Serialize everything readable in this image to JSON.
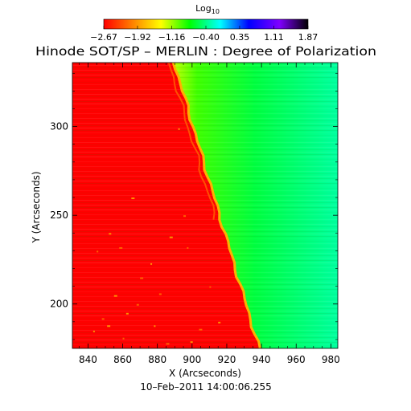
{
  "chart_data": {
    "type": "heatmap",
    "title": "Hinode SOT/SP – MERLIN : Degree of Polarization",
    "xlabel": "X (Arcseconds)",
    "ylabel": "Y (Arcseconds)",
    "xlim": [
      831,
      984
    ],
    "ylim": [
      175,
      336
    ],
    "xticks": [
      840,
      860,
      880,
      900,
      920,
      940,
      960,
      980
    ],
    "yticks": [
      200,
      250,
      300
    ],
    "timestamp": "10–Feb–2011 14:00:06.255",
    "colorbar": {
      "label_base": "Log",
      "label_sub": "10",
      "min": -2.67,
      "max": 1.87,
      "tick_labels": [
        "−2.67",
        "−1.92",
        "−1.16",
        "−0.40",
        "0.35",
        "1.11",
        "1.87"
      ],
      "tick_values": [
        -2.67,
        -1.92,
        -1.16,
        -0.4,
        0.35,
        1.11,
        1.87
      ],
      "colormap": "rainbow",
      "stops": [
        "#ff0000",
        "#ff8000",
        "#ffff00",
        "#00ff00",
        "#00ffff",
        "#0000ff",
        "#8000ff",
        "#000000"
      ]
    },
    "field": {
      "limb_x_at_y_min": 938,
      "limb_x_at_y_max": 889,
      "off_limb_level": -2.67,
      "disk_level": -1.0
    }
  }
}
